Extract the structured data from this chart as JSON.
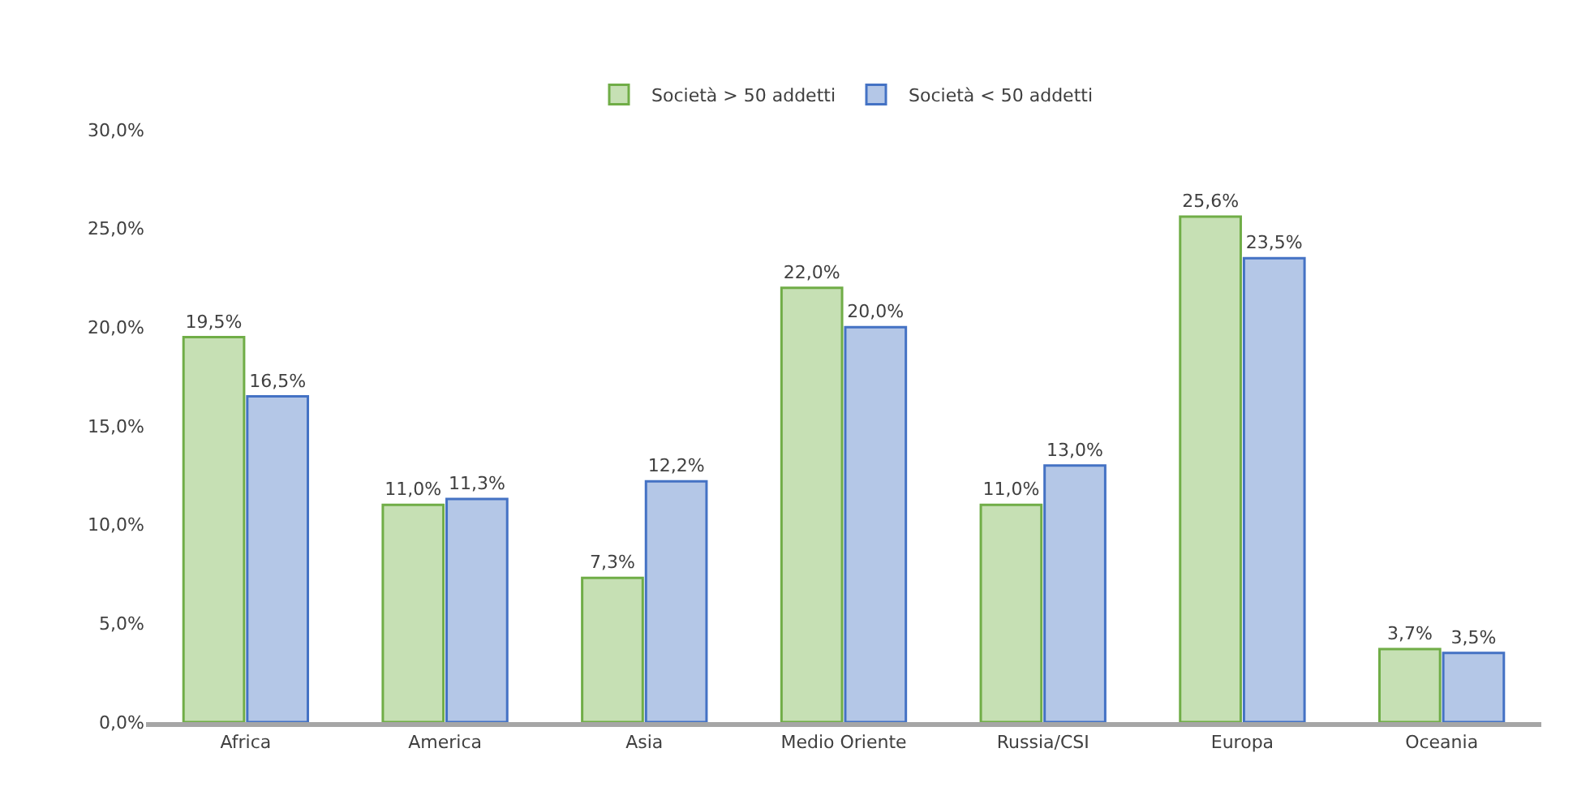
{
  "chart_data": {
    "type": "bar",
    "categories": [
      "Africa",
      "America",
      "Asia",
      "Medio Oriente",
      "Russia/CSI",
      "Europa",
      "Oceania"
    ],
    "series": [
      {
        "name": "Società > 50 addetti",
        "color": "#c6e0b4",
        "values": [
          19.5,
          11.0,
          7.3,
          22.0,
          11.0,
          25.6,
          3.7
        ],
        "value_labels": [
          "19,5%",
          "11,0%",
          "7,3%",
          "22,0%",
          "11,0%",
          "25,6%",
          "3,7%"
        ]
      },
      {
        "name": "Società < 50 addetti",
        "color": "#b4c7e7",
        "values": [
          16.5,
          11.3,
          12.2,
          20.0,
          13.0,
          23.5,
          3.5
        ],
        "value_labels": [
          "16,5%",
          "11,3%",
          "12,2%",
          "20,0%",
          "13,0%",
          "23,5%",
          "3,5%"
        ]
      }
    ],
    "ylim": [
      0,
      30
    ],
    "yticks": [
      {
        "value": 0,
        "label": "0,0%"
      },
      {
        "value": 5,
        "label": "5,0%"
      },
      {
        "value": 10,
        "label": "10,0%"
      },
      {
        "value": 15,
        "label": "15,0%"
      },
      {
        "value": 20,
        "label": "20,0%"
      },
      {
        "value": 25,
        "label": "25,0%"
      },
      {
        "value": 30,
        "label": "30,0%"
      }
    ],
    "legend": "top"
  }
}
